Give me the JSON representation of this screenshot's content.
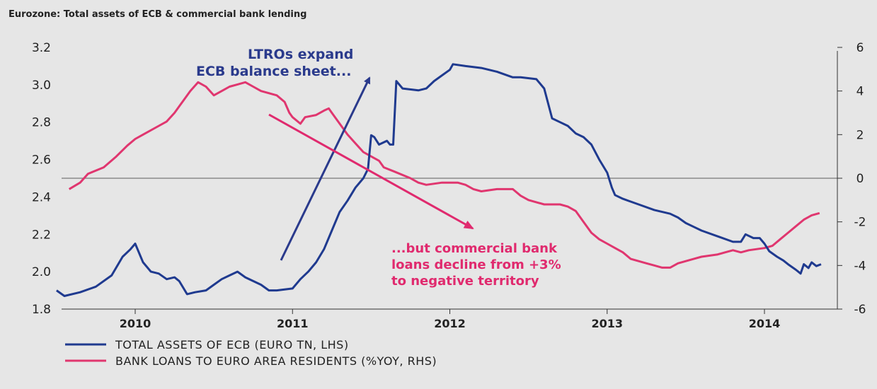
{
  "chart_data": {
    "type": "line",
    "title": "Eurozone: Total assets of ECB & commercial bank lending",
    "x_ticks": [
      "2010",
      "2011",
      "2012",
      "2013",
      "2014"
    ],
    "y_left": {
      "ticks": [
        "1.8",
        "2.0",
        "2.2",
        "2.4",
        "2.6",
        "2.8",
        "3.0",
        "3.2"
      ],
      "range": [
        1.8,
        3.2
      ]
    },
    "y_right": {
      "ticks": [
        "-6",
        "-4",
        "-2",
        "0",
        "2",
        "4",
        "6"
      ],
      "range": [
        -6,
        6
      ]
    },
    "series": [
      {
        "name": "TOTAL ASSETS OF ECB (EURO TN, LHS)",
        "axis": "left",
        "color": "#1f3a8f",
        "points": [
          [
            2009.5,
            1.9
          ],
          [
            2009.55,
            1.87
          ],
          [
            2009.65,
            1.89
          ],
          [
            2009.75,
            1.92
          ],
          [
            2009.85,
            1.98
          ],
          [
            2009.92,
            2.08
          ],
          [
            2009.97,
            2.12
          ],
          [
            2010.0,
            2.15
          ],
          [
            2010.05,
            2.05
          ],
          [
            2010.1,
            2.0
          ],
          [
            2010.15,
            1.99
          ],
          [
            2010.2,
            1.96
          ],
          [
            2010.25,
            1.97
          ],
          [
            2010.28,
            1.95
          ],
          [
            2010.33,
            1.88
          ],
          [
            2010.38,
            1.89
          ],
          [
            2010.45,
            1.9
          ],
          [
            2010.5,
            1.93
          ],
          [
            2010.55,
            1.96
          ],
          [
            2010.6,
            1.98
          ],
          [
            2010.65,
            2.0
          ],
          [
            2010.7,
            1.97
          ],
          [
            2010.75,
            1.95
          ],
          [
            2010.8,
            1.93
          ],
          [
            2010.85,
            1.9
          ],
          [
            2010.9,
            1.9
          ],
          [
            2011.0,
            1.91
          ],
          [
            2011.05,
            1.96
          ],
          [
            2011.1,
            2.0
          ],
          [
            2011.15,
            2.05
          ],
          [
            2011.2,
            2.12
          ],
          [
            2011.25,
            2.22
          ],
          [
            2011.3,
            2.32
          ],
          [
            2011.35,
            2.38
          ],
          [
            2011.4,
            2.45
          ],
          [
            2011.45,
            2.5
          ],
          [
            2011.48,
            2.55
          ],
          [
            2011.5,
            2.73
          ],
          [
            2011.52,
            2.72
          ],
          [
            2011.55,
            2.68
          ],
          [
            2011.6,
            2.7
          ],
          [
            2011.62,
            2.68
          ],
          [
            2011.64,
            2.68
          ],
          [
            2011.66,
            3.02
          ],
          [
            2011.7,
            2.98
          ],
          [
            2011.8,
            2.97
          ],
          [
            2011.85,
            2.98
          ],
          [
            2011.9,
            3.02
          ],
          [
            2011.95,
            3.05
          ],
          [
            2012.0,
            3.08
          ],
          [
            2012.02,
            3.11
          ],
          [
            2012.1,
            3.1
          ],
          [
            2012.2,
            3.09
          ],
          [
            2012.3,
            3.07
          ],
          [
            2012.4,
            3.04
          ],
          [
            2012.45,
            3.04
          ],
          [
            2012.55,
            3.03
          ],
          [
            2012.6,
            2.98
          ],
          [
            2012.65,
            2.82
          ],
          [
            2012.7,
            2.8
          ],
          [
            2012.75,
            2.78
          ],
          [
            2012.8,
            2.74
          ],
          [
            2012.85,
            2.72
          ],
          [
            2012.9,
            2.68
          ],
          [
            2012.95,
            2.6
          ],
          [
            2013.0,
            2.53
          ],
          [
            2013.03,
            2.45
          ],
          [
            2013.05,
            2.41
          ],
          [
            2013.1,
            2.39
          ],
          [
            2013.2,
            2.36
          ],
          [
            2013.3,
            2.33
          ],
          [
            2013.4,
            2.31
          ],
          [
            2013.45,
            2.29
          ],
          [
            2013.5,
            2.26
          ],
          [
            2013.55,
            2.24
          ],
          [
            2013.6,
            2.22
          ],
          [
            2013.7,
            2.19
          ],
          [
            2013.8,
            2.16
          ],
          [
            2013.85,
            2.16
          ],
          [
            2013.88,
            2.2
          ],
          [
            2013.93,
            2.18
          ],
          [
            2013.97,
            2.18
          ],
          [
            2014.0,
            2.15
          ],
          [
            2014.03,
            2.11
          ],
          [
            2014.08,
            2.08
          ],
          [
            2014.12,
            2.06
          ],
          [
            2014.15,
            2.04
          ],
          [
            2014.2,
            2.01
          ],
          [
            2014.23,
            1.99
          ],
          [
            2014.25,
            2.04
          ],
          [
            2014.28,
            2.02
          ],
          [
            2014.3,
            2.05
          ],
          [
            2014.33,
            2.03
          ],
          [
            2014.36,
            2.04
          ]
        ]
      },
      {
        "name": "BANK LOANS TO EURO AREA RESIDENTS (%YOY, RHS)",
        "axis": "right",
        "color": "#e0366f",
        "points": [
          [
            2009.58,
            -0.5
          ],
          [
            2009.65,
            -0.2
          ],
          [
            2009.7,
            0.2
          ],
          [
            2009.8,
            0.5
          ],
          [
            2009.88,
            1.0
          ],
          [
            2009.95,
            1.5
          ],
          [
            2010.0,
            1.8
          ],
          [
            2010.05,
            2.0
          ],
          [
            2010.15,
            2.4
          ],
          [
            2010.2,
            2.6
          ],
          [
            2010.25,
            3.0
          ],
          [
            2010.3,
            3.5
          ],
          [
            2010.35,
            4.0
          ],
          [
            2010.4,
            4.4
          ],
          [
            2010.45,
            4.2
          ],
          [
            2010.5,
            3.8
          ],
          [
            2010.55,
            4.0
          ],
          [
            2010.6,
            4.2
          ],
          [
            2010.65,
            4.3
          ],
          [
            2010.7,
            4.4
          ],
          [
            2010.75,
            4.2
          ],
          [
            2010.8,
            4.0
          ],
          [
            2010.9,
            3.8
          ],
          [
            2010.95,
            3.5
          ],
          [
            2010.98,
            3.0
          ],
          [
            2011.0,
            2.8
          ],
          [
            2011.05,
            2.5
          ],
          [
            2011.08,
            2.8
          ],
          [
            2011.15,
            2.9
          ],
          [
            2011.2,
            3.1
          ],
          [
            2011.23,
            3.2
          ],
          [
            2011.25,
            3.0
          ],
          [
            2011.27,
            2.8
          ],
          [
            2011.3,
            2.5
          ],
          [
            2011.35,
            2.0
          ],
          [
            2011.4,
            1.6
          ],
          [
            2011.45,
            1.2
          ],
          [
            2011.5,
            1.0
          ],
          [
            2011.55,
            0.8
          ],
          [
            2011.58,
            0.5
          ],
          [
            2011.65,
            0.3
          ],
          [
            2011.75,
            0.0
          ],
          [
            2011.8,
            -0.2
          ],
          [
            2011.85,
            -0.3
          ],
          [
            2011.95,
            -0.2
          ],
          [
            2012.0,
            -0.2
          ],
          [
            2012.05,
            -0.2
          ],
          [
            2012.1,
            -0.3
          ],
          [
            2012.15,
            -0.5
          ],
          [
            2012.2,
            -0.6
          ],
          [
            2012.3,
            -0.5
          ],
          [
            2012.4,
            -0.5
          ],
          [
            2012.45,
            -0.8
          ],
          [
            2012.5,
            -1.0
          ],
          [
            2012.6,
            -1.2
          ],
          [
            2012.7,
            -1.2
          ],
          [
            2012.75,
            -1.3
          ],
          [
            2012.8,
            -1.5
          ],
          [
            2012.85,
            -2.0
          ],
          [
            2012.9,
            -2.5
          ],
          [
            2012.95,
            -2.8
          ],
          [
            2013.0,
            -3.0
          ],
          [
            2013.05,
            -3.2
          ],
          [
            2013.1,
            -3.4
          ],
          [
            2013.15,
            -3.7
          ],
          [
            2013.2,
            -3.8
          ],
          [
            2013.25,
            -3.9
          ],
          [
            2013.3,
            -4.0
          ],
          [
            2013.35,
            -4.1
          ],
          [
            2013.4,
            -4.1
          ],
          [
            2013.45,
            -3.9
          ],
          [
            2013.5,
            -3.8
          ],
          [
            2013.55,
            -3.7
          ],
          [
            2013.6,
            -3.6
          ],
          [
            2013.7,
            -3.5
          ],
          [
            2013.75,
            -3.4
          ],
          [
            2013.8,
            -3.3
          ],
          [
            2013.85,
            -3.4
          ],
          [
            2013.9,
            -3.3
          ],
          [
            2014.0,
            -3.2
          ],
          [
            2014.05,
            -3.1
          ],
          [
            2014.1,
            -2.8
          ],
          [
            2014.15,
            -2.5
          ],
          [
            2014.2,
            -2.2
          ],
          [
            2014.25,
            -1.9
          ],
          [
            2014.3,
            -1.7
          ],
          [
            2014.35,
            -1.6
          ]
        ]
      }
    ],
    "annotations": {
      "ltro": {
        "lines": [
          "LTROs expand",
          "ECB balance sheet..."
        ],
        "color": "#2a3a8c"
      },
      "loans": {
        "lines": [
          "...but commercial bank",
          "loans decline from +3%",
          "to negative territory"
        ],
        "color": "#e02a6e"
      }
    },
    "grid": false,
    "legend": "bottom-left"
  }
}
